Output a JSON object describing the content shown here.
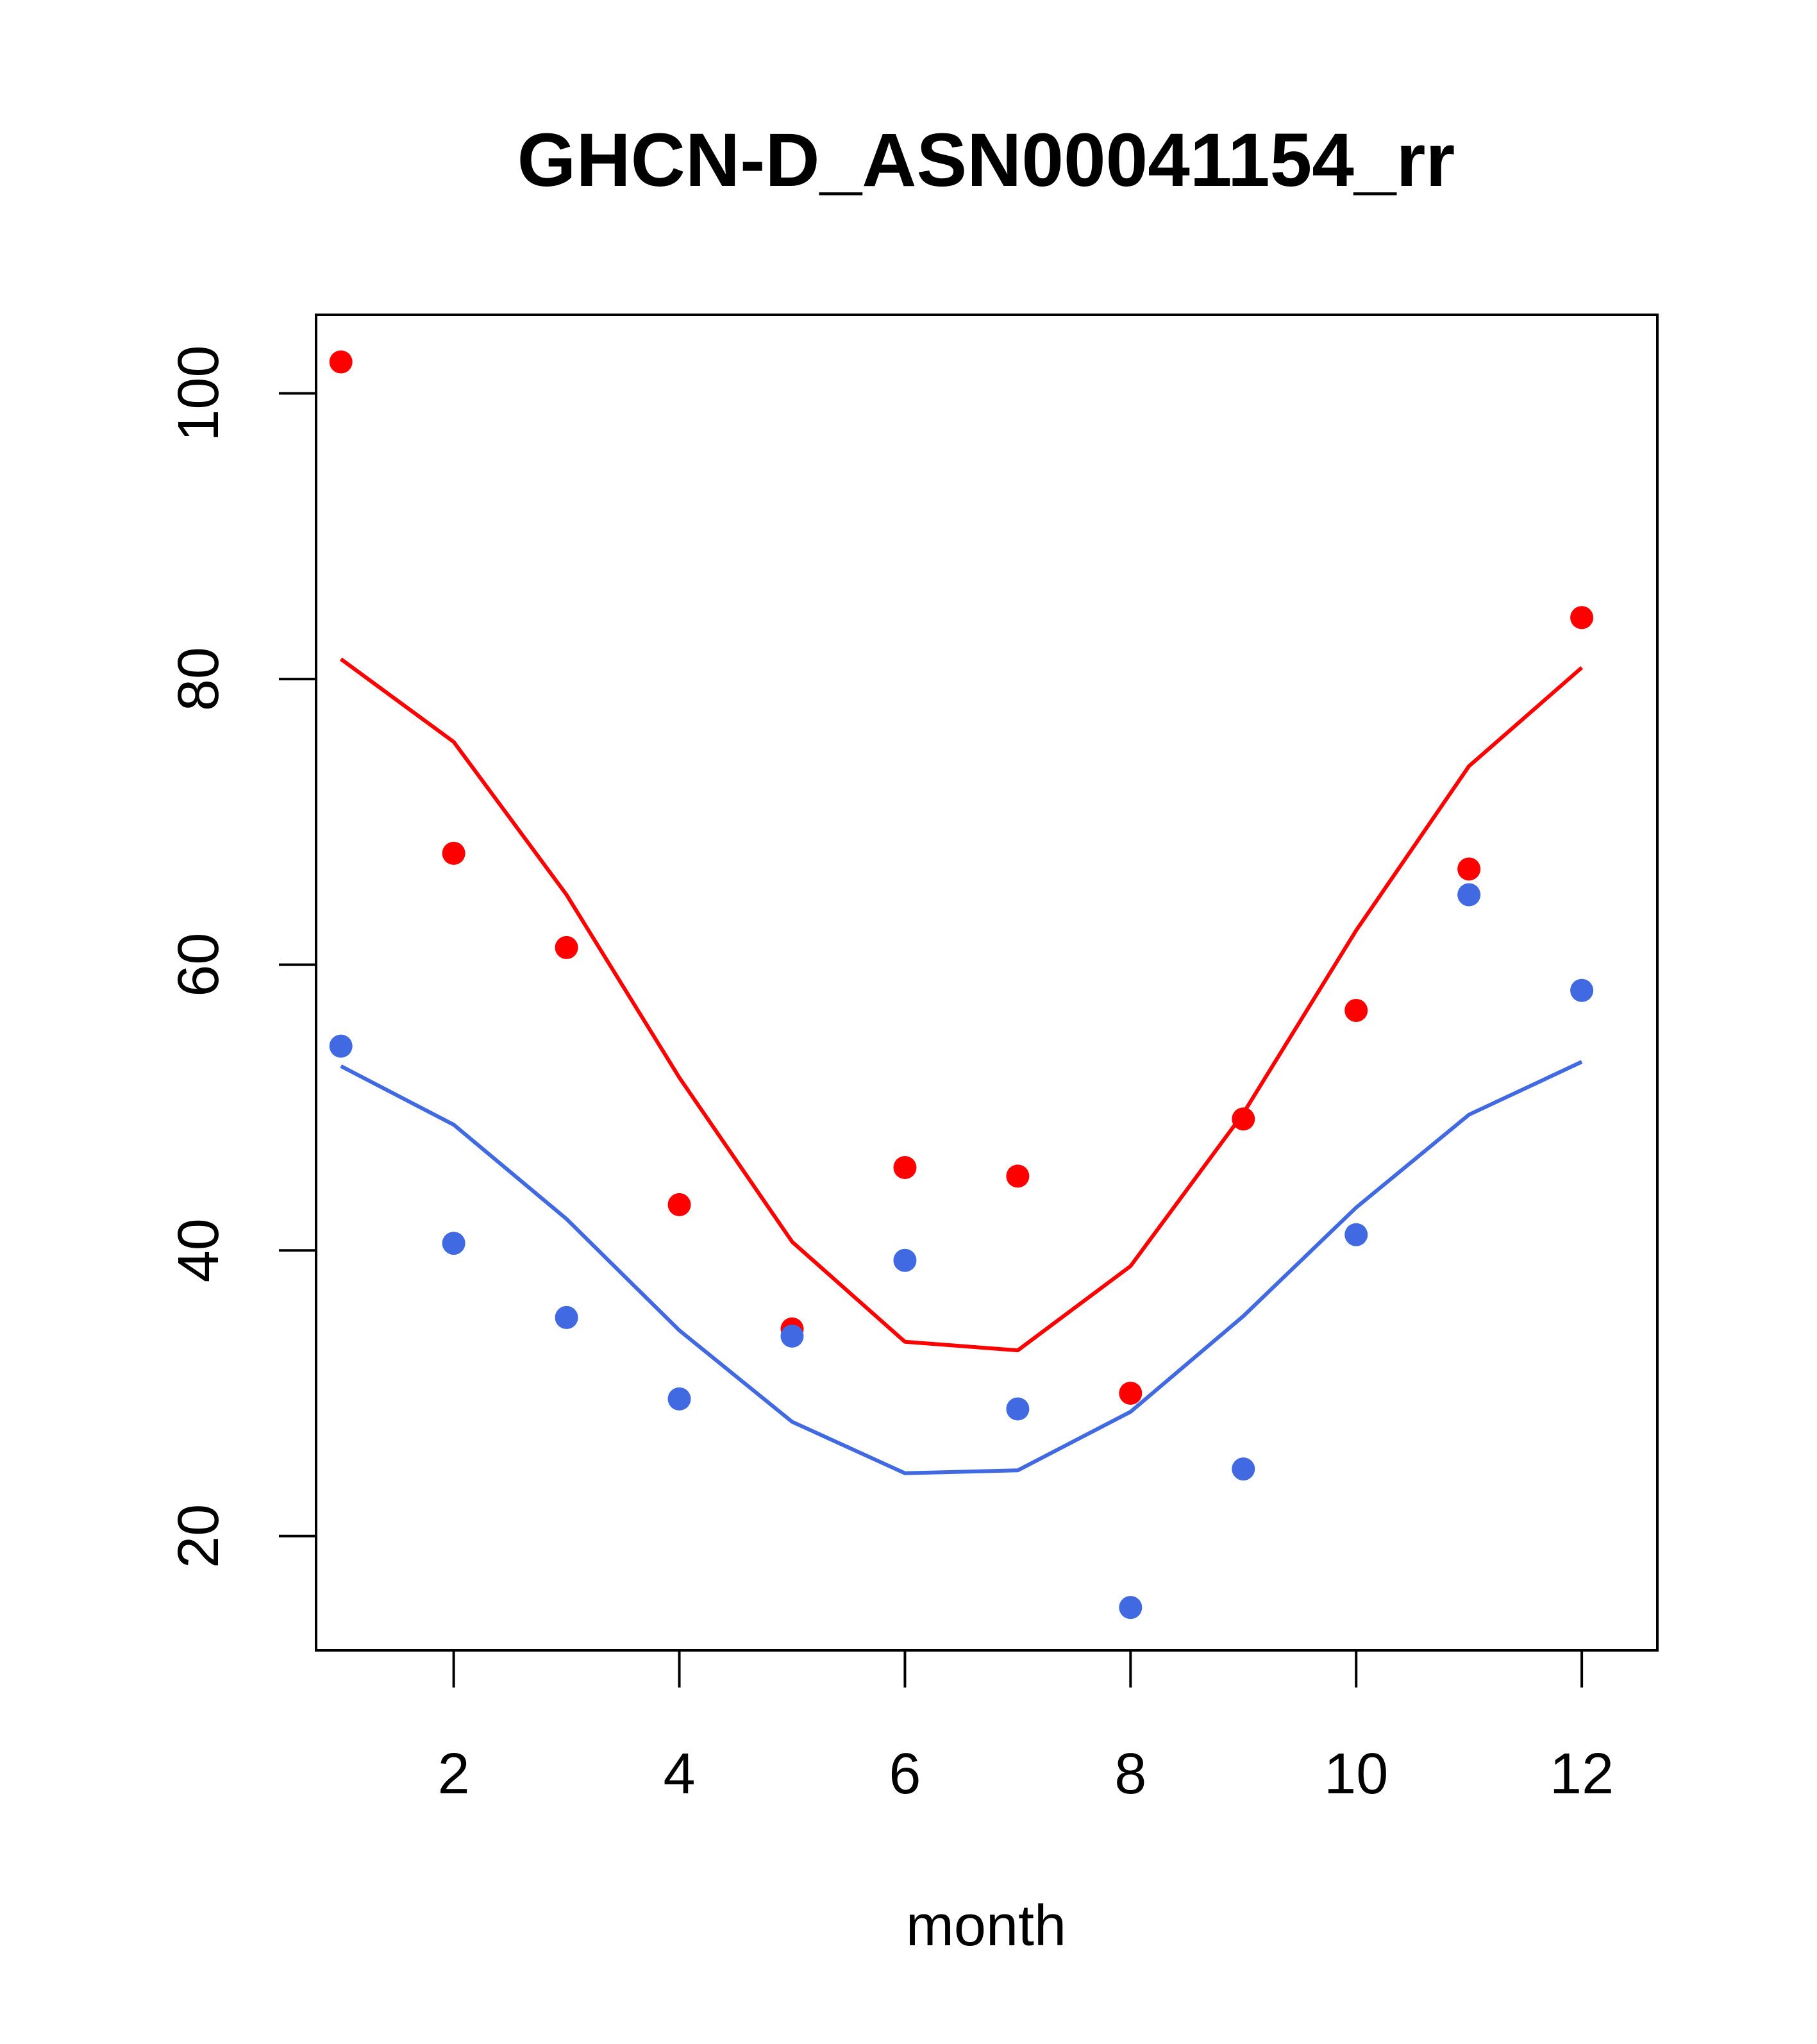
{
  "chart_data": {
    "type": "scatter",
    "title": "GHCN-D_ASN00041154_rr",
    "xlabel": "month",
    "ylabel": "",
    "xlim": [
      0.78,
      12.67
    ],
    "ylim": [
      12.0,
      105.5
    ],
    "x_ticks": [
      2,
      4,
      6,
      8,
      10,
      12
    ],
    "y_ticks": [
      20,
      40,
      60,
      80,
      100
    ],
    "grid": false,
    "legend": "none",
    "x": [
      1,
      2,
      3,
      4,
      5,
      6,
      7,
      8,
      9,
      10,
      11,
      12
    ],
    "series": [
      {
        "color": "#ff0000",
        "points": [
          102.2,
          67.8,
          61.2,
          43.2,
          34.5,
          45.8,
          45.2,
          30.0,
          49.2,
          56.8,
          66.7,
          84.3
        ],
        "line": [
          81.4,
          75.6,
          64.9,
          52.1,
          40.6,
          33.6,
          33.0,
          38.9,
          49.6,
          62.4,
          73.9,
          80.8
        ]
      },
      {
        "color": "#4169e1",
        "points": [
          54.3,
          40.5,
          35.3,
          29.6,
          34.0,
          39.3,
          28.9,
          15.0,
          24.7,
          41.1,
          64.9,
          58.2
        ],
        "line": [
          52.9,
          48.8,
          42.2,
          34.4,
          28.0,
          24.4,
          24.6,
          28.7,
          35.4,
          43.0,
          49.5,
          53.2
        ]
      }
    ]
  }
}
